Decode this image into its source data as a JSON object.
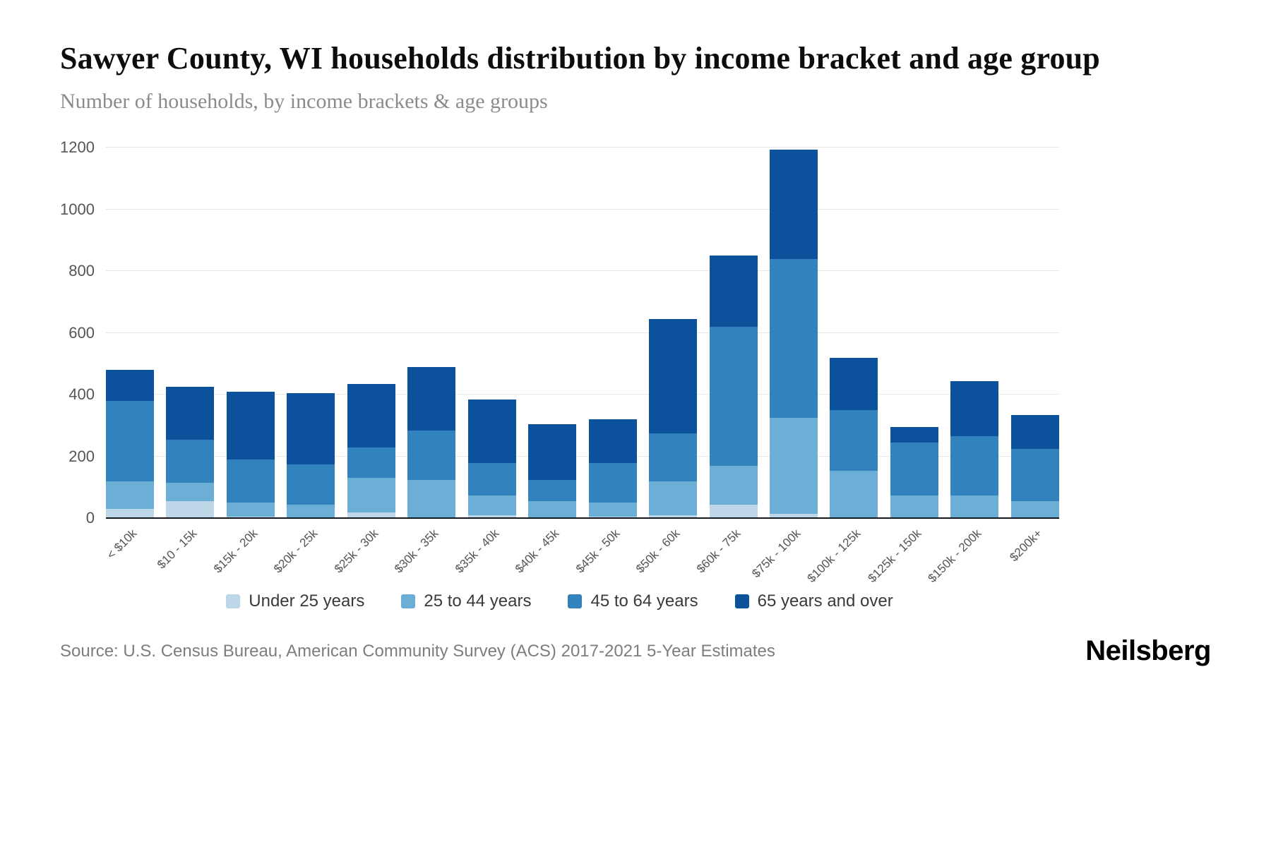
{
  "header": {
    "title": "Sawyer County, WI households distribution by income bracket and age group",
    "subtitle": "Number of households, by income brackets & age groups"
  },
  "chart_data": {
    "type": "bar",
    "stacked": true,
    "title": "Sawyer County, WI households distribution by income bracket and age group",
    "xlabel": "",
    "ylabel": "Number of households",
    "categories": [
      "< $10k",
      "$10 - 15k",
      "$15k - 20k",
      "$20k - 25k",
      "$25k - 30k",
      "$30k - 35k",
      "$35k - 40k",
      "$40k - 45k",
      "$45k - 50k",
      "$50k - 60k",
      "$60k - 75k",
      "$75k - 100k",
      "$100k - 125k",
      "$125k - 150k",
      "$150k - 200k",
      "$200k+"
    ],
    "series": [
      {
        "name": "Under 25 years",
        "color": "#bdd7e8",
        "values": [
          30,
          55,
          5,
          0,
          20,
          0,
          10,
          0,
          5,
          10,
          45,
          15,
          0,
          0,
          0,
          0
        ]
      },
      {
        "name": "25 to 44 years",
        "color": "#6baed6",
        "values": [
          90,
          60,
          45,
          45,
          110,
          125,
          65,
          55,
          45,
          110,
          125,
          310,
          155,
          75,
          75,
          55
        ]
      },
      {
        "name": "45 to 64 years",
        "color": "#3182bd",
        "values": [
          260,
          140,
          140,
          130,
          100,
          160,
          105,
          70,
          130,
          155,
          450,
          515,
          195,
          170,
          190,
          170
        ]
      },
      {
        "name": "65 years and over",
        "color": "#0b519c",
        "values": [
          100,
          170,
          220,
          230,
          205,
          205,
          205,
          180,
          140,
          370,
          230,
          355,
          170,
          50,
          180,
          110
        ]
      }
    ],
    "ylim": [
      0,
      1200
    ],
    "yticks": [
      0,
      200,
      400,
      600,
      800,
      1000,
      1200
    ],
    "grid": true,
    "legend_position": "bottom"
  },
  "footer": {
    "source": "Source: U.S. Census Bureau, American Community Survey (ACS) 2017-2021 5-Year Estimates",
    "logo": "Neilsberg"
  }
}
